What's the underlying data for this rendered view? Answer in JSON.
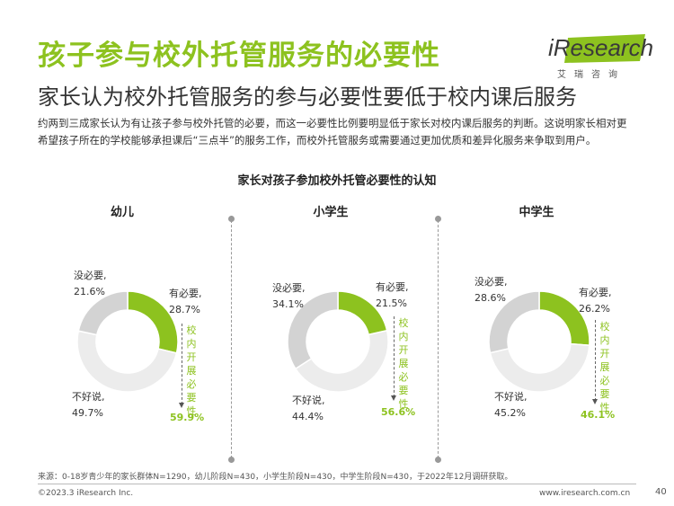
{
  "title": "孩子参与校外托管服务的必要性",
  "subtitle": "家长认为校外托管服务的参与必要性要低于校内课后服务",
  "logo": {
    "main": "iResearch",
    "sub": "艾瑞咨询"
  },
  "description": "约两到三成家长认为有让孩子参与校外托管的必要，而这一必要性比例要明显低于家长对校内课后服务的判断。这说明家长相对更希望孩子所在的学校能够承担课后“三点半”的服务工作，而校外托管服务或需要通过更加优质和差异化服务来争取到用户。",
  "chart_data": [
    {
      "type": "pie",
      "title": "家长对孩子参加校外托管必要性的认知",
      "panel_title": "幼儿",
      "slices": [
        {
          "label": "有必要,",
          "value": 28.7,
          "value_label": "28.7%",
          "color": "#8dc21f"
        },
        {
          "label": "不好说,",
          "value": 49.7,
          "value_label": "49.7%",
          "color": "#ececec"
        },
        {
          "label": "没必要,",
          "value": 21.6,
          "value_label": "21.6%",
          "color": "#d3d3d3"
        }
      ],
      "annotation": {
        "text": "校内开展必要性",
        "value": "59.9%"
      }
    },
    {
      "type": "pie",
      "panel_title": "小学生",
      "slices": [
        {
          "label": "有必要,",
          "value": 21.5,
          "value_label": "21.5%",
          "color": "#8dc21f"
        },
        {
          "label": "不好说,",
          "value": 44.4,
          "value_label": "44.4%",
          "color": "#ececec"
        },
        {
          "label": "没必要,",
          "value": 34.1,
          "value_label": "34.1%",
          "color": "#d3d3d3"
        }
      ],
      "annotation": {
        "text": "校内开展必要性",
        "value": "56.6%"
      }
    },
    {
      "type": "pie",
      "panel_title": "中学生",
      "slices": [
        {
          "label": "有必要,",
          "value": 26.2,
          "value_label": "26.2%",
          "color": "#8dc21f"
        },
        {
          "label": "不好说,",
          "value": 45.2,
          "value_label": "45.2%",
          "color": "#ececec"
        },
        {
          "label": "没必要,",
          "value": 28.6,
          "value_label": "28.6%",
          "color": "#d3d3d3"
        }
      ],
      "annotation": {
        "text": "校内开展必要性",
        "value": "46.1%"
      }
    }
  ],
  "source": "来源：0-18岁青少年的家长群体N=1290，幼儿阶段N=430，小学生阶段N=430，中学生阶段N=430，于2022年12月调研获取。",
  "footer": {
    "copyright": "©2023.3 iResearch Inc.",
    "site": "www.iresearch.com.cn",
    "page": "40"
  }
}
